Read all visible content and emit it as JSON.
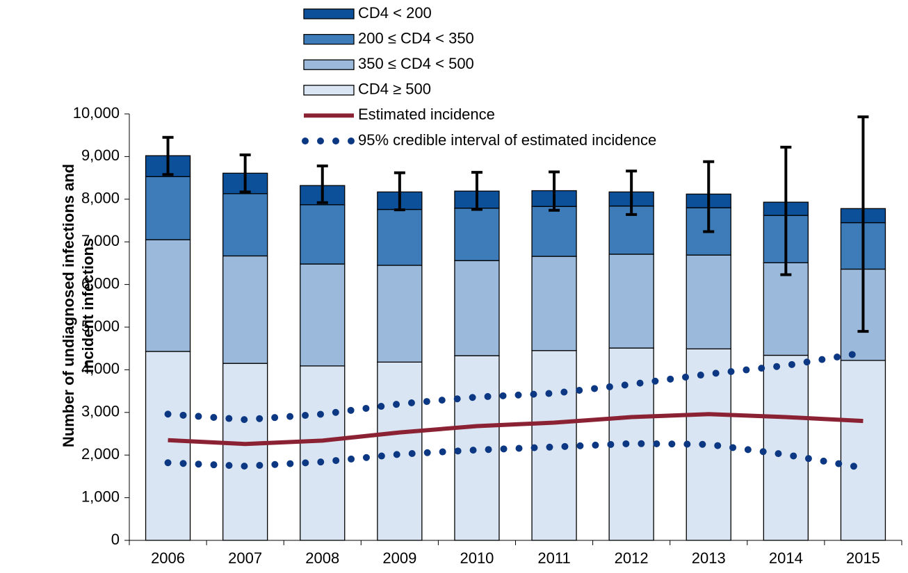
{
  "chart_data": {
    "type": "bar",
    "ylabel": [
      "Number of undiagnosed infections and",
      "incident infections"
    ],
    "categories": [
      "2006",
      "2007",
      "2008",
      "2009",
      "2010",
      "2011",
      "2012",
      "2013",
      "2014",
      "2015"
    ],
    "ylim": [
      0,
      10000
    ],
    "yticks": [
      0,
      {
        "value": 1000,
        "label": "1,000"
      },
      {
        "value": 2000,
        "label": "2,000"
      },
      {
        "value": 3000,
        "label": "3,000"
      },
      {
        "value": 4000,
        "label": "4,000"
      },
      {
        "value": 5000,
        "label": "5,000"
      },
      {
        "value": 6000,
        "label": "6,000"
      },
      {
        "value": 7000,
        "label": "7,000"
      },
      {
        "value": 8000,
        "label": "8,000"
      },
      {
        "value": 9000,
        "label": "9,000"
      },
      {
        "value": 10000,
        "label": "10,000"
      }
    ],
    "series": [
      {
        "name": "CD4 < 200",
        "type": "bar",
        "color": "#0d509a",
        "values": [
          490,
          480,
          450,
          410,
          400,
          370,
          330,
          320,
          310,
          330
        ]
      },
      {
        "name": "200 ≤ CD4 < 350",
        "type": "bar",
        "color": "#3d7cb9",
        "values": [
          1480,
          1460,
          1390,
          1310,
          1230,
          1170,
          1130,
          1110,
          1110,
          1090
        ]
      },
      {
        "name": "350 ≤ CD4 < 500",
        "type": "bar",
        "color": "#9bbadb",
        "values": [
          2620,
          2520,
          2390,
          2270,
          2230,
          2210,
          2200,
          2200,
          2170,
          2140
        ]
      },
      {
        "name": "CD4 ≥ 500",
        "type": "bar",
        "color": "#d9e5f2",
        "values": [
          4430,
          4150,
          4090,
          4180,
          4330,
          4450,
          4510,
          4490,
          4340,
          4220
        ]
      },
      {
        "name": "Estimated incidence",
        "type": "line",
        "color": "#8b2234",
        "values": [
          2350,
          2260,
          2340,
          2530,
          2680,
          2760,
          2890,
          2960,
          2890,
          2800
        ]
      },
      {
        "name": "95% credible interval of estimated incidence",
        "type": "dotted",
        "color": "#0c3782",
        "upper": [
          2960,
          2830,
          2960,
          3200,
          3360,
          3450,
          3660,
          3900,
          4100,
          4400
        ],
        "lower": [
          1820,
          1740,
          1840,
          2020,
          2120,
          2190,
          2270,
          2250,
          2010,
          1700
        ]
      }
    ],
    "error_bars": {
      "color": "#000000",
      "lower": [
        8580,
        8170,
        7920,
        7750,
        7760,
        7740,
        7640,
        7240,
        6230,
        4900
      ],
      "upper": [
        9450,
        9040,
        8780,
        8620,
        8630,
        8640,
        8660,
        8880,
        9220,
        9930
      ]
    }
  }
}
